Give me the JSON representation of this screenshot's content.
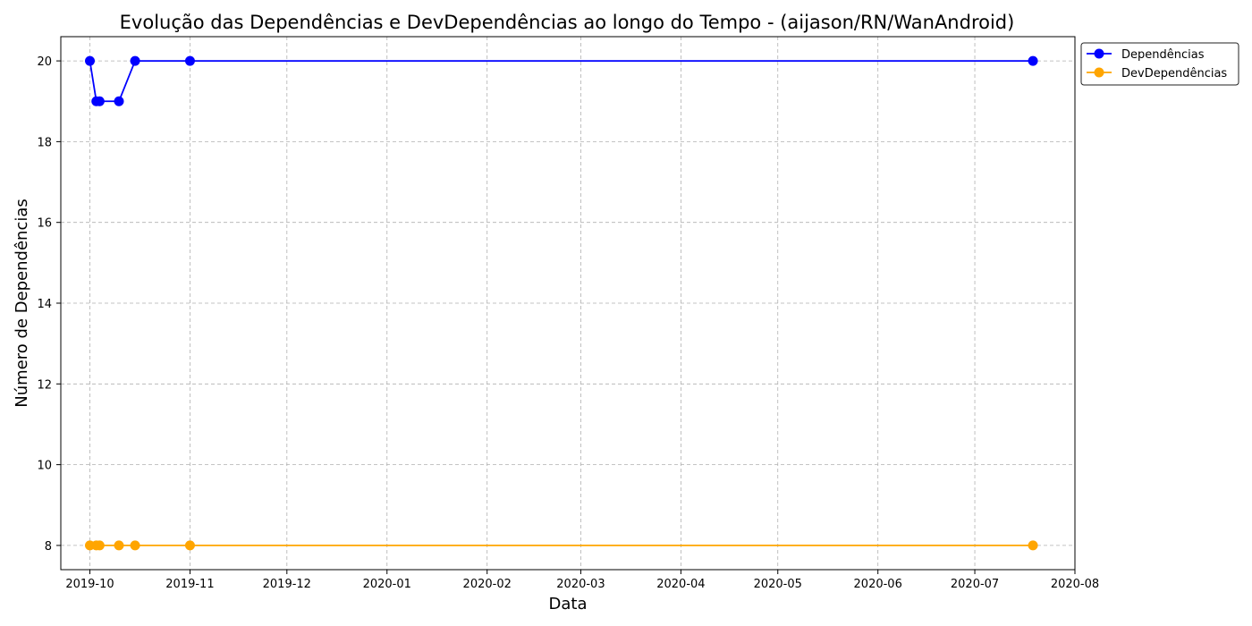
{
  "chart_data": {
    "type": "line",
    "title": "Evolução das Dependências e DevDependências ao longo do Tempo - (aijason/RN/WanAndroid)",
    "xlabel": "Data",
    "ylabel": "Número de Dependências",
    "x_type": "date",
    "xlim": [
      "2019-09-22",
      "2020-08-01"
    ],
    "ylim": [
      7.4,
      20.6
    ],
    "x_ticks": [
      "2019-10",
      "2019-11",
      "2019-12",
      "2020-01",
      "2020-02",
      "2020-03",
      "2020-04",
      "2020-05",
      "2020-06",
      "2020-07",
      "2020-08"
    ],
    "y_ticks": [
      8,
      10,
      12,
      14,
      16,
      18,
      20
    ],
    "grid": true,
    "grid_style": "dashed",
    "legend_position": "outside-top-right",
    "x": [
      "2019-10-01",
      "2019-10-03",
      "2019-10-04",
      "2019-10-10",
      "2019-10-15",
      "2019-11-01",
      "2020-07-19"
    ],
    "series": [
      {
        "name": "Dependências",
        "color": "#0000ff",
        "marker": "circle",
        "values": [
          20,
          19,
          19,
          19,
          20,
          20,
          20
        ]
      },
      {
        "name": "DevDependências",
        "color": "#ffa500",
        "marker": "circle",
        "values": [
          8,
          8,
          8,
          8,
          8,
          8,
          8
        ]
      }
    ]
  }
}
